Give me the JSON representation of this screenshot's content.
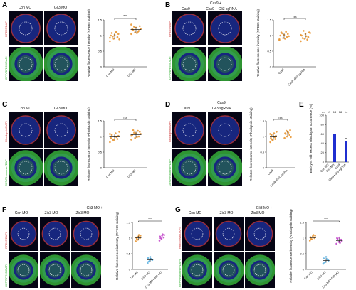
{
  "panels": {
    "A": {
      "letter": "A",
      "cols": [
        "Con MO",
        "Gli3 MO"
      ],
      "row1": "RPE65/DAPI",
      "row2": "GFP/RPE65/DAPI"
    },
    "B": {
      "letter": "B",
      "top": "Cas9 +",
      "cols": [
        "Cas9",
        "Cas9 + Gli3 sgRNA"
      ],
      "row1": "RPE65/DAPI",
      "row2": "GFP/RPE65/DAPI"
    },
    "C": {
      "letter": "C",
      "cols": [
        "Con MO",
        "Gli3 MO"
      ],
      "row1": "Rhodopsin/DAPI",
      "row2": "GFP/Rhodopsin/DAPI"
    },
    "D": {
      "letter": "D",
      "top": "Cas9",
      "cols": [
        "Cas9",
        "Gli3 sgRNA"
      ],
      "row1": "Rhodopsin/DAPI",
      "row2": "GFP/Rhodopsin/DAPI"
    },
    "E": {
      "letter": "E"
    },
    "F": {
      "letter": "F",
      "top": "Gli3 MO +",
      "cols": [
        "Con MO",
        "Zic3 MO",
        "Zic3 MO"
      ],
      "row1": "RPE65/DAPI",
      "row2": "GFP/RPE65/DAPI"
    },
    "G": {
      "letter": "G",
      "top": "Gli3 MO +",
      "cols": [
        "Con MO",
        "Zic3 MO",
        "Zic3 MO"
      ],
      "row1": "Rhodopsin/DAPI",
      "row2": "GFP/Rhodopsin/DAPI"
    }
  },
  "chart_data": [
    {
      "id": "A",
      "type": "scatter",
      "ylabel": "Relative fluorescence intensity (RPE65 staining)",
      "categories": [
        "Con MO",
        "Gli3 MO"
      ],
      "ylim": [
        0,
        1.5
      ],
      "yticks": [
        0,
        0.5,
        1.0,
        1.5
      ],
      "sig": "***",
      "color": "#e8922a",
      "series": [
        {
          "values": [
            0.82,
            0.9,
            0.95,
            1.0,
            1.02,
            1.05,
            1.08,
            1.1,
            0.88,
            0.97,
            1.12,
            0.93
          ]
        },
        {
          "values": [
            1.05,
            1.1,
            1.15,
            1.2,
            1.25,
            1.3,
            1.18,
            1.08,
            1.22,
            1.28,
            1.12,
            1.35
          ]
        }
      ]
    },
    {
      "id": "B",
      "type": "scatter",
      "ylabel": "Relative fluorescence intensity (RPE65 staining)",
      "categories": [
        "Cas9",
        "Cas9+Gli3 sgRNA"
      ],
      "ylim": [
        0,
        1.5
      ],
      "yticks": [
        0,
        0.5,
        1.0,
        1.5
      ],
      "sig": "ns",
      "color": "#e8922a",
      "series": [
        {
          "values": [
            0.85,
            0.92,
            0.95,
            1.0,
            1.02,
            1.05,
            1.1,
            0.9,
            0.98,
            1.07,
            1.12,
            0.88
          ]
        },
        {
          "values": [
            0.82,
            0.9,
            0.95,
            1.0,
            1.05,
            1.1,
            0.92,
            0.98,
            1.08,
            1.15,
            0.87,
            1.02
          ]
        }
      ]
    },
    {
      "id": "C",
      "type": "scatter",
      "ylabel": "Relative fluorescence intensity (Rhodopsin staining)",
      "categories": [
        "Con MO",
        "Gli3 MO"
      ],
      "ylim": [
        0,
        1.5
      ],
      "yticks": [
        0,
        0.5,
        1.0,
        1.5
      ],
      "sig": "ns",
      "color": "#e8922a",
      "series": [
        {
          "values": [
            0.82,
            0.88,
            0.92,
            0.95,
            1.0,
            1.02,
            1.05,
            1.1,
            1.15,
            0.9,
            0.98,
            1.08
          ]
        },
        {
          "values": [
            0.9,
            0.95,
            1.0,
            1.05,
            1.1,
            1.15,
            1.2,
            0.98,
            1.08,
            1.12,
            1.18,
            1.02
          ]
        }
      ]
    },
    {
      "id": "D",
      "type": "scatter",
      "ylabel": "Relative fluorescence intensity (Rhodopsin staining)",
      "categories": [
        "Cas9",
        "Cas9+Gli3 sgRNA"
      ],
      "ylim": [
        0,
        1.5
      ],
      "yticks": [
        0,
        0.5,
        1.0,
        1.5
      ],
      "sig": "ns",
      "color": "#e8922a",
      "series": [
        {
          "values": [
            0.82,
            0.88,
            0.92,
            0.95,
            1.0,
            1.02,
            1.05,
            1.1,
            1.15,
            0.9,
            0.98,
            1.08
          ]
        },
        {
          "values": [
            0.95,
            1.0,
            1.05,
            1.1,
            1.15,
            1.2,
            1.08,
            1.12,
            0.98,
            1.18
          ]
        }
      ]
    },
    {
      "id": "E",
      "type": "bar",
      "ylabel": "Embryos with excess Rhodopsin occurrence (%)",
      "categories": [
        "Con MO",
        "Gli3 MO",
        "Cas9",
        "Cas9+Gli3 sgRNA"
      ],
      "values": [
        0,
        60,
        0,
        45
      ],
      "n": [
        "n=",
        "17",
        "18",
        "18",
        "14"
      ],
      "ylim": [
        0,
        100
      ],
      "yticks": [
        0,
        20,
        40,
        60,
        80,
        100
      ],
      "color": "#1f2fd0"
    },
    {
      "id": "F",
      "type": "scatter",
      "ylabel": "Relative fluorescence intensity (RPE65 staining)",
      "categories": [
        "Con MO",
        "Zic3 MO",
        "Zic3 MO+Gli3 MO"
      ],
      "ylim": [
        0,
        1.5
      ],
      "yticks": [
        0,
        0.5,
        1.0,
        1.5
      ],
      "sig": "***",
      "colors": [
        "#e8922a",
        "#5ab0e0",
        "#c040c8"
      ],
      "series": [
        {
          "values": [
            0.9,
            0.95,
            1.0,
            1.02,
            1.05,
            1.08,
            0.98,
            1.1
          ]
        },
        {
          "values": [
            0.2,
            0.28,
            0.32,
            0.36,
            0.4,
            0.3,
            0.25,
            0.34
          ]
        },
        {
          "values": [
            0.92,
            0.98,
            1.02,
            1.05,
            1.08,
            1.1,
            1.0,
            1.12
          ]
        }
      ]
    },
    {
      "id": "G",
      "type": "scatter",
      "ylabel": "Relative fluorescence intensity (Rhodopsin staining)",
      "categories": [
        "Con MO",
        "Zic3 MO",
        "Zic3 MO+Gli3 MO"
      ],
      "ylim": [
        0,
        1.5
      ],
      "yticks": [
        0,
        0.5,
        1.0,
        1.5
      ],
      "sig": "***",
      "colors": [
        "#e8922a",
        "#5ab0e0",
        "#c040c8"
      ],
      "series": [
        {
          "values": [
            0.92,
            0.96,
            1.0,
            1.03,
            1.06,
            1.08,
            0.98,
            1.1
          ]
        },
        {
          "values": [
            0.18,
            0.24,
            0.3,
            0.35,
            0.4,
            0.28,
            0.22,
            0.33
          ]
        },
        {
          "values": [
            0.82,
            0.88,
            0.95,
            1.0,
            1.02,
            0.9,
            0.98,
            0.85
          ]
        }
      ]
    }
  ]
}
